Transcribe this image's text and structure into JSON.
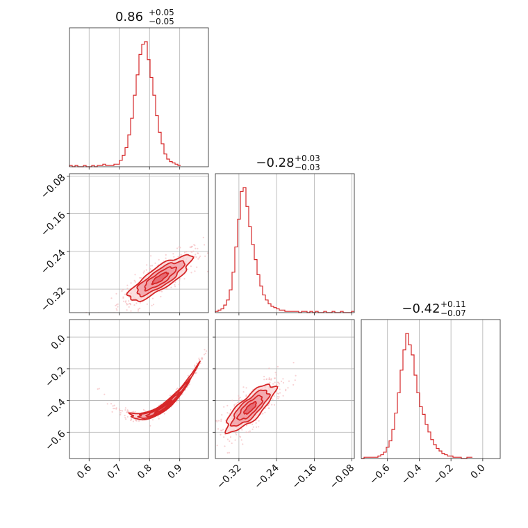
{
  "figure": {
    "type": "corner-plot",
    "parameters": 3
  },
  "colors": {
    "accent": "#d62728",
    "fill_inner": "#e35a63",
    "fill_mid": "#f09aa0",
    "fill_outer": "#fad4d6",
    "points": "#f3b4b8"
  },
  "chart_data": {
    "type": "corner",
    "params": [
      {
        "summary": {
          "median": "0.86",
          "plus": "+0.05",
          "minus": "−0.05"
        },
        "range": [
          0.535,
          0.995
        ],
        "ticks": [
          0.6,
          0.7,
          0.8,
          0.9
        ],
        "tick_labels": [
          "0.6",
          "0.7",
          "0.8",
          "0.9"
        ],
        "hist": {
          "edges_start": 0.535,
          "bin_width": 0.0092,
          "counts": [
            1,
            0,
            1,
            0,
            0,
            1,
            0,
            0,
            1,
            0,
            1,
            1,
            2,
            1,
            1,
            1,
            2,
            2,
            5,
            9,
            15,
            25,
            38,
            56,
            72,
            88,
            96,
            98,
            84,
            70,
            56,
            40,
            27,
            18,
            10,
            6,
            4,
            3,
            2,
            1
          ]
        }
      },
      {
        "summary": {
          "median": "−0.28",
          "plus": "+0.03",
          "minus": "−0.03"
        },
        "range": [
          -0.37,
          -0.075
        ],
        "ticks": [
          -0.32,
          -0.24,
          -0.16,
          -0.08
        ],
        "tick_labels": [
          "−0.32",
          "−0.24",
          "−0.16",
          "−0.08"
        ],
        "hist": {
          "edges_start": -0.37,
          "bin_width": 0.0059,
          "counts": [
            1,
            2,
            3,
            6,
            10,
            18,
            32,
            52,
            74,
            96,
            99,
            84,
            68,
            54,
            42,
            30,
            21,
            14,
            10,
            7,
            5,
            4,
            3,
            2,
            2,
            1,
            1,
            1,
            1,
            1,
            0,
            1,
            1,
            0,
            1,
            0,
            1,
            0,
            0,
            1,
            0,
            0,
            1,
            0,
            0,
            1,
            0,
            0,
            0,
            1
          ]
        }
      },
      {
        "summary": {
          "median": "−0.42",
          "plus": "+0.11",
          "minus": "−0.07"
        },
        "range": [
          -0.765,
          0.11
        ],
        "ticks": [
          -0.6,
          -0.4,
          -0.2,
          0.0
        ],
        "tick_labels": [
          "−0.6",
          "−0.4",
          "−0.2",
          "0.0"
        ],
        "hist": {
          "edges_start": -0.765,
          "bin_width": 0.0175,
          "counts": [
            0,
            1,
            1,
            1,
            1,
            1,
            2,
            3,
            5,
            9,
            14,
            23,
            36,
            52,
            70,
            86,
            99,
            90,
            82,
            66,
            52,
            41,
            35,
            27,
            21,
            15,
            11,
            8,
            6,
            4,
            3,
            2,
            2,
            1,
            1,
            1,
            0,
            0,
            1,
            1
          ]
        }
      }
    ],
    "pairs": [
      {
        "x": 0,
        "y": 1,
        "center": [
          0.835,
          -0.297
        ],
        "sigma": [
          0.052,
          0.024
        ],
        "corr": 0.83
      },
      {
        "x": 0,
        "y": 2,
        "center": [
          0.845,
          -0.447
        ],
        "sigma": [
          0.055,
          0.075
        ],
        "corr": 0.985
      },
      {
        "x": 1,
        "y": 2,
        "center": [
          -0.296,
          -0.447
        ],
        "sigma": [
          0.026,
          0.075
        ],
        "corr": 0.8
      }
    ]
  }
}
